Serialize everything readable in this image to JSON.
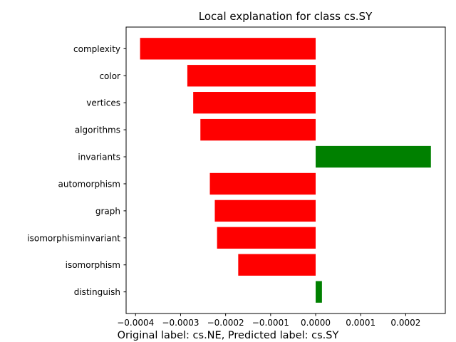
{
  "chart_data": {
    "type": "bar",
    "orientation": "horizontal",
    "title": "Local explanation for class cs.SY",
    "caption": "Original label: cs.NE, Predicted label: cs.SY",
    "categories": [
      "complexity",
      "color",
      "vertices",
      "algorithms",
      "invariants",
      "automorphism",
      "graph",
      "isomorphisminvariant",
      "isomorphism",
      "distinguish"
    ],
    "values": [
      -0.00039,
      -0.000285,
      -0.000272,
      -0.000256,
      0.000256,
      -0.000235,
      -0.000224,
      -0.000219,
      -0.000172,
      1.4e-05
    ],
    "xlim": [
      -0.000421,
      0.000288
    ],
    "xticks": [
      -0.0004,
      -0.0003,
      -0.0002,
      -0.0001,
      0,
      0.0001,
      0.0002
    ],
    "xtick_labels": [
      "−0.0004",
      "−0.0003",
      "−0.0002",
      "−0.0001",
      "0.0000",
      "0.0001",
      "0.0002"
    ],
    "grid": false,
    "colors": {
      "positive": "#008000",
      "negative": "#ff0000"
    }
  }
}
